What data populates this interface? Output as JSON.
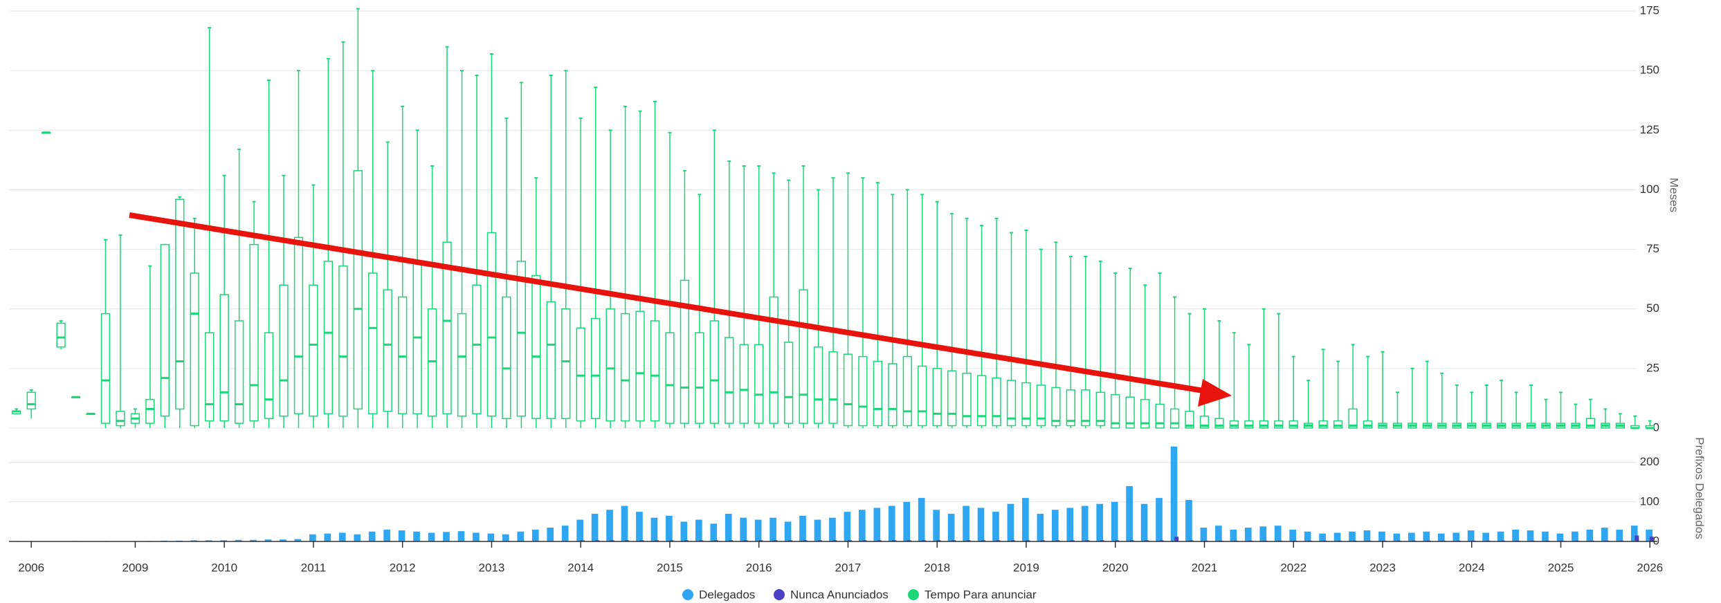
{
  "chart_data": [
    {
      "type": "boxplot",
      "ylabel": "Meses",
      "ylim": [
        0,
        175
      ],
      "yticks": [
        0,
        25,
        50,
        75,
        100,
        125,
        150,
        175
      ],
      "grid": true,
      "series": [
        {
          "name": "Tempo Para anunciar",
          "color": "#19d676",
          "values": [
            [
              6,
              6,
              7,
              7,
              8
            ],
            [
              4,
              8,
              10,
              15,
              16
            ],
            [
              124,
              124,
              124,
              124,
              124
            ],
            [
              33,
              34,
              38,
              44,
              45
            ],
            [
              13,
              13,
              13,
              13,
              13
            ],
            [
              6,
              6,
              6,
              6,
              6
            ],
            [
              0,
              2,
              20,
              48,
              79
            ],
            [
              0,
              1,
              3,
              7,
              81
            ],
            [
              0,
              2,
              4,
              6,
              8
            ],
            [
              0,
              2,
              8,
              12,
              68
            ],
            [
              0,
              5,
              21,
              77,
              77
            ],
            [
              0,
              8,
              28,
              96,
              97
            ],
            [
              0,
              1,
              48,
              65,
              88
            ],
            [
              0,
              3,
              10,
              40,
              168
            ],
            [
              0,
              3,
              15,
              56,
              106
            ],
            [
              0,
              2,
              10,
              45,
              117
            ],
            [
              0,
              3,
              18,
              77,
              95
            ],
            [
              0,
              4,
              12,
              40,
              146
            ],
            [
              0,
              5,
              20,
              60,
              106
            ],
            [
              0,
              6,
              30,
              80,
              150
            ],
            [
              0,
              5,
              35,
              60,
              102
            ],
            [
              0,
              6,
              40,
              70,
              155
            ],
            [
              0,
              5,
              30,
              68,
              162
            ],
            [
              0,
              8,
              50,
              108,
              176
            ],
            [
              0,
              6,
              42,
              65,
              150
            ],
            [
              0,
              7,
              35,
              58,
              120
            ],
            [
              0,
              6,
              30,
              55,
              135
            ],
            [
              0,
              6,
              38,
              70,
              125
            ],
            [
              0,
              5,
              28,
              50,
              110
            ],
            [
              0,
              6,
              45,
              78,
              160
            ],
            [
              0,
              5,
              30,
              48,
              150
            ],
            [
              0,
              6,
              35,
              60,
              148
            ],
            [
              0,
              5,
              38,
              82,
              157
            ],
            [
              0,
              4,
              25,
              55,
              130
            ],
            [
              0,
              5,
              40,
              70,
              145
            ],
            [
              0,
              4,
              30,
              64,
              105
            ],
            [
              0,
              4,
              35,
              53,
              148
            ],
            [
              0,
              4,
              28,
              50,
              150
            ],
            [
              0,
              3,
              22,
              42,
              130
            ],
            [
              0,
              4,
              22,
              46,
              143
            ],
            [
              0,
              3,
              25,
              50,
              125
            ],
            [
              0,
              3,
              20,
              48,
              135
            ],
            [
              0,
              3,
              23,
              49,
              133
            ],
            [
              0,
              3,
              22,
              45,
              137
            ],
            [
              0,
              2,
              18,
              40,
              124
            ],
            [
              0,
              2,
              17,
              62,
              108
            ],
            [
              0,
              2,
              17,
              40,
              98
            ],
            [
              0,
              2,
              20,
              45,
              125
            ],
            [
              0,
              2,
              15,
              38,
              112
            ],
            [
              0,
              2,
              16,
              35,
              110
            ],
            [
              0,
              2,
              14,
              35,
              110
            ],
            [
              0,
              2,
              15,
              55,
              107
            ],
            [
              0,
              2,
              13,
              36,
              104
            ],
            [
              0,
              2,
              14,
              58,
              110
            ],
            [
              0,
              2,
              12,
              34,
              100
            ],
            [
              0,
              2,
              12,
              32,
              105
            ],
            [
              0,
              1,
              10,
              31,
              107
            ],
            [
              0,
              1,
              9,
              30,
              105
            ],
            [
              0,
              1,
              8,
              28,
              103
            ],
            [
              0,
              1,
              8,
              27,
              98
            ],
            [
              0,
              1,
              7,
              30,
              100
            ],
            [
              0,
              1,
              7,
              26,
              98
            ],
            [
              0,
              1,
              6,
              25,
              95
            ],
            [
              0,
              1,
              6,
              24,
              90
            ],
            [
              0,
              1,
              5,
              23,
              88
            ],
            [
              0,
              1,
              5,
              22,
              85
            ],
            [
              0,
              1,
              5,
              21,
              88
            ],
            [
              0,
              1,
              4,
              20,
              82
            ],
            [
              0,
              1,
              4,
              19,
              83
            ],
            [
              0,
              1,
              4,
              18,
              75
            ],
            [
              0,
              1,
              3,
              17,
              78
            ],
            [
              0,
              1,
              3,
              16,
              72
            ],
            [
              0,
              1,
              3,
              16,
              72
            ],
            [
              0,
              1,
              3,
              15,
              70
            ],
            [
              0,
              0,
              2,
              14,
              65
            ],
            [
              0,
              0,
              2,
              13,
              67
            ],
            [
              0,
              0,
              2,
              12,
              60
            ],
            [
              0,
              0,
              2,
              10,
              65
            ],
            [
              0,
              0,
              2,
              8,
              55
            ],
            [
              0,
              0,
              1,
              7,
              48
            ],
            [
              0,
              0,
              1,
              5,
              50
            ],
            [
              0,
              0,
              1,
              4,
              45
            ],
            [
              0,
              0,
              1,
              3,
              40
            ],
            [
              0,
              0,
              1,
              3,
              35
            ],
            [
              0,
              0,
              1,
              3,
              50
            ],
            [
              0,
              0,
              1,
              3,
              48
            ],
            [
              0,
              0,
              1,
              3,
              30
            ],
            [
              0,
              0,
              1,
              2,
              20
            ],
            [
              0,
              0,
              1,
              3,
              33
            ],
            [
              0,
              0,
              1,
              3,
              28
            ],
            [
              0,
              0,
              1,
              8,
              35
            ],
            [
              0,
              0,
              1,
              3,
              30
            ],
            [
              0,
              0,
              1,
              2,
              32
            ],
            [
              0,
              0,
              1,
              2,
              15
            ],
            [
              0,
              0,
              1,
              2,
              25
            ],
            [
              0,
              0,
              1,
              2,
              28
            ],
            [
              0,
              0,
              1,
              2,
              23
            ],
            [
              0,
              0,
              1,
              2,
              18
            ],
            [
              0,
              0,
              1,
              2,
              15
            ],
            [
              0,
              0,
              1,
              2,
              18
            ],
            [
              0,
              0,
              1,
              2,
              20
            ],
            [
              0,
              0,
              1,
              2,
              15
            ],
            [
              0,
              0,
              1,
              2,
              18
            ],
            [
              0,
              0,
              1,
              2,
              12
            ],
            [
              0,
              0,
              1,
              2,
              15
            ],
            [
              0,
              0,
              1,
              2,
              10
            ],
            [
              0,
              0,
              1,
              4,
              12
            ],
            [
              0,
              0,
              1,
              2,
              8
            ],
            [
              0,
              0,
              1,
              2,
              6
            ],
            [
              0,
              0,
              0,
              1,
              5
            ],
            [
              0,
              0,
              0,
              1,
              3
            ]
          ]
        }
      ]
    },
    {
      "type": "bar",
      "ylabel": "Prefixos Delegados",
      "ylim": [
        0,
        250
      ],
      "yticks": [
        0,
        100,
        200
      ],
      "grid": true,
      "categories": [
        null,
        "2006",
        null,
        null,
        null,
        null,
        null,
        null,
        "2009",
        null,
        null,
        null,
        null,
        null,
        "2010",
        null,
        null,
        null,
        null,
        null,
        "2011",
        null,
        null,
        null,
        null,
        null,
        "2012",
        null,
        null,
        null,
        null,
        null,
        "2013",
        null,
        null,
        null,
        null,
        null,
        "2014",
        null,
        null,
        null,
        null,
        null,
        "2015",
        null,
        null,
        null,
        null,
        null,
        "2016",
        null,
        null,
        null,
        null,
        null,
        "2017",
        null,
        null,
        null,
        null,
        null,
        "2018",
        null,
        null,
        null,
        null,
        null,
        "2019",
        null,
        null,
        null,
        null,
        null,
        "2020",
        null,
        null,
        null,
        null,
        null,
        "2021",
        null,
        null,
        null,
        null,
        null,
        "2022",
        null,
        null,
        null,
        null,
        null,
        "2023",
        null,
        null,
        null,
        null,
        null,
        "2024",
        null,
        null,
        null,
        null,
        null,
        "2025",
        null,
        null,
        null,
        null,
        null,
        "2026"
      ],
      "series": [
        {
          "name": "Delegados",
          "color": "#2ea6f2",
          "values": [
            1,
            0,
            0,
            0,
            1,
            0,
            1,
            0,
            1,
            1,
            2,
            2,
            3,
            3,
            3,
            4,
            4,
            5,
            5,
            6,
            18,
            20,
            22,
            18,
            25,
            30,
            28,
            25,
            22,
            24,
            26,
            22,
            20,
            18,
            25,
            30,
            35,
            40,
            55,
            70,
            80,
            90,
            75,
            60,
            65,
            50,
            55,
            45,
            70,
            60,
            55,
            60,
            50,
            65,
            55,
            60,
            75,
            80,
            85,
            90,
            100,
            110,
            80,
            70,
            90,
            85,
            75,
            95,
            110,
            70,
            80,
            85,
            90,
            95,
            100,
            140,
            95,
            110,
            240,
            105,
            35,
            40,
            30,
            35,
            38,
            40,
            30,
            25,
            20,
            22,
            25,
            28,
            25,
            20,
            22,
            25,
            20,
            22,
            28,
            22,
            25,
            30,
            28,
            25,
            20,
            25,
            30,
            35,
            30,
            40,
            30
          ]
        },
        {
          "name": "Nunca Anunciados",
          "color": "#4b3fc4",
          "values": [
            0,
            0,
            0,
            0,
            0,
            0,
            0,
            0,
            0,
            0,
            0,
            1,
            1,
            1,
            1,
            1,
            1,
            1,
            1,
            1,
            1,
            1,
            1,
            1,
            1,
            1,
            1,
            1,
            1,
            1,
            1,
            1,
            1,
            1,
            1,
            1,
            1,
            1,
            3,
            3,
            3,
            3,
            3,
            3,
            3,
            3,
            3,
            3,
            3,
            3,
            3,
            3,
            3,
            3,
            3,
            3,
            3,
            3,
            3,
            3,
            3,
            3,
            3,
            3,
            3,
            3,
            3,
            3,
            3,
            3,
            3,
            3,
            3,
            3,
            3,
            3,
            3,
            3,
            12,
            3,
            2,
            2,
            2,
            2,
            2,
            2,
            2,
            2,
            2,
            2,
            2,
            2,
            2,
            2,
            2,
            2,
            2,
            2,
            2,
            2,
            2,
            2,
            2,
            2,
            2,
            2,
            2,
            2,
            2,
            15,
            12
          ]
        }
      ]
    }
  ]
}
